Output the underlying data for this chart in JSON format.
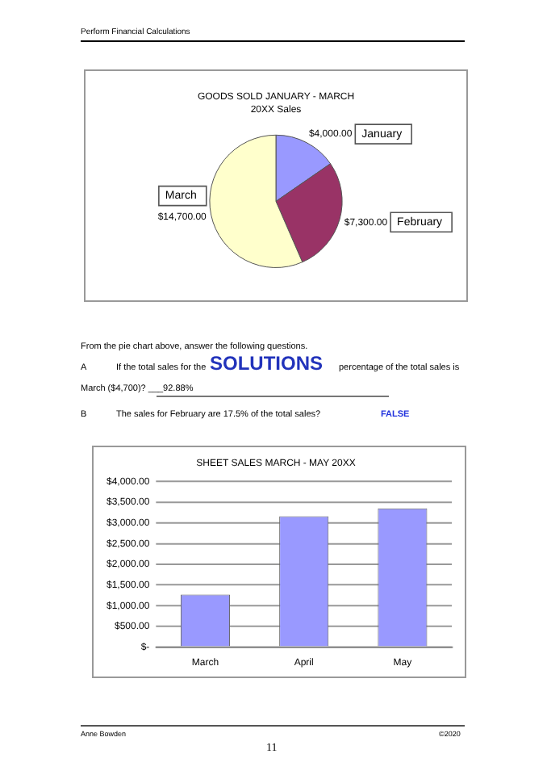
{
  "chart_data": [
    {
      "type": "pie",
      "title": "GOODS SOLD JANUARY - MARCH",
      "subtitle": "20XX Sales",
      "categories": [
        "January",
        "February",
        "March"
      ],
      "values": [
        4000,
        7300,
        14700
      ],
      "colors": [
        "#9999ff",
        "#993366",
        "#ffffcc"
      ],
      "value_labels": [
        "$4,000.00",
        "$7,300.00",
        "$14,700.00"
      ],
      "legend": false,
      "annotations": [
        "Perform Financial Calculations",
        "From the pie chart above, answer the following questions.",
        "A",
        "If the total sales for the",
        "SOLUTIONS",
        "percentage of the total sales is",
        "March ($4,700)? ___92.88%",
        "B",
        "The sales for February are 17.5% of the total sales?",
        "FALSE",
        "Anne Bowden",
        "©2020",
        "11"
      ]
    },
    {
      "type": "bar",
      "title": "SHEET SALES MARCH - MAY 20XX",
      "categories": [
        "March",
        "April",
        "May"
      ],
      "values": [
        1270,
        3160,
        3350
      ],
      "color": "#9999ff",
      "ylim": [
        0,
        4000
      ],
      "yticks": [
        {
          "value": 0,
          "label": "$-"
        },
        {
          "value": 500,
          "label": "$500.00"
        },
        {
          "value": 1000,
          "label": "$1,000.00"
        },
        {
          "value": 1500,
          "label": "$1,500.00"
        },
        {
          "value": 2000,
          "label": "$2,000.00"
        },
        {
          "value": 2500,
          "label": "$2,500.00"
        },
        {
          "value": 3000,
          "label": "$3,000.00"
        },
        {
          "value": 3500,
          "label": "$3,500.00"
        },
        {
          "value": 4000,
          "label": "$4,000.00"
        }
      ],
      "grid": "y",
      "legend": false
    }
  ]
}
